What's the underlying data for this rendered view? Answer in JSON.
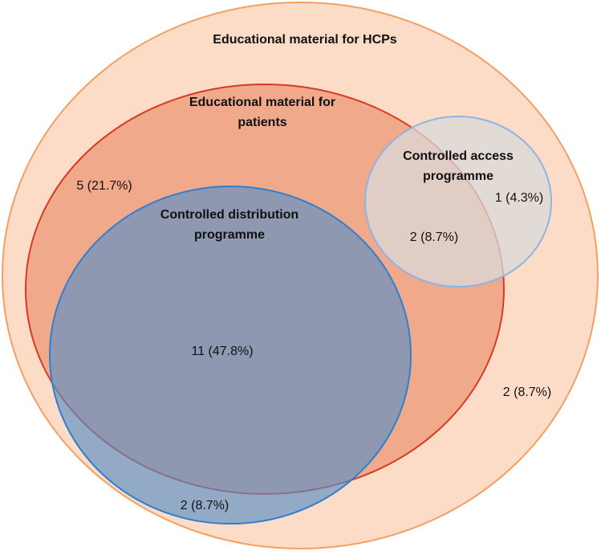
{
  "sets": [
    {
      "lines": [
        "Educational material for HCPs"
      ]
    },
    {
      "lines": [
        "Educational material for",
        "patients"
      ]
    },
    {
      "lines": [
        "Controlled distribution",
        "programme"
      ]
    },
    {
      "lines": [
        "Controlled access",
        "programme"
      ]
    }
  ],
  "regions": [
    {
      "label": "5 (21.7%)"
    },
    {
      "label": "1 (4.3%)"
    },
    {
      "label": "2 (8.7%)"
    },
    {
      "label": "11 (47.8%)"
    },
    {
      "label": "2 (8.7%)"
    },
    {
      "label": "2 (8.7%)"
    }
  ]
}
